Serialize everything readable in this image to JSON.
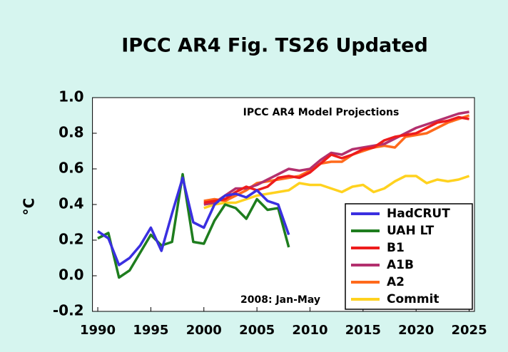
{
  "chart_data": {
    "type": "line",
    "title": "IPCC AR4 Fig. TS26 Updated",
    "y_label": "°C",
    "annotations": [
      "IPCC AR4 Model Projections",
      "2008: Jan-May"
    ],
    "xlim": [
      1989.5,
      2025.5
    ],
    "xticks": [
      1990,
      1995,
      2000,
      2005,
      2010,
      2015,
      2020,
      2025
    ],
    "ylim": [
      -0.2,
      1.0
    ],
    "yticks": [
      {
        "value": 1,
        "label": "1.0"
      },
      0.8,
      0.6,
      0.4,
      0.2,
      {
        "value": 0,
        "label": "0.0"
      },
      -0.2
    ],
    "grid": false,
    "legend": "lower right",
    "series": [
      {
        "name": "HadCRUT",
        "color": "#3a2fe0",
        "x": [
          1990,
          1991,
          1992,
          1993,
          1994,
          1995,
          1996,
          1997,
          1998,
          1999,
          2000,
          2001,
          2002,
          2003,
          2004,
          2005,
          2006,
          2007,
          2008
        ],
        "values": [
          0.25,
          0.21,
          0.06,
          0.1,
          0.17,
          0.27,
          0.14,
          0.35,
          0.55,
          0.3,
          0.27,
          0.4,
          0.45,
          0.46,
          0.44,
          0.48,
          0.42,
          0.4,
          0.23
        ]
      },
      {
        "name": "UAH LT",
        "color": "#1e7d1e",
        "x": [
          1990,
          1991,
          1992,
          1993,
          1994,
          1995,
          1996,
          1997,
          1998,
          1999,
          2000,
          2001,
          2002,
          2003,
          2004,
          2005,
          2006,
          2007,
          2008
        ],
        "values": [
          0.21,
          0.24,
          -0.01,
          0.03,
          0.13,
          0.23,
          0.17,
          0.19,
          0.57,
          0.19,
          0.18,
          0.31,
          0.4,
          0.38,
          0.32,
          0.43,
          0.37,
          0.38,
          0.16
        ]
      },
      {
        "name": "B1",
        "color": "#ee1c1c",
        "x": [
          2000,
          2001,
          2002,
          2003,
          2004,
          2005,
          2006,
          2007,
          2008,
          2009,
          2010,
          2011,
          2012,
          2013,
          2014,
          2015,
          2016,
          2017,
          2018,
          2019,
          2020,
          2021,
          2022,
          2023,
          2024,
          2025
        ],
        "values": [
          0.41,
          0.42,
          0.43,
          0.47,
          0.5,
          0.48,
          0.5,
          0.55,
          0.56,
          0.55,
          0.58,
          0.63,
          0.68,
          0.66,
          0.68,
          0.71,
          0.72,
          0.76,
          0.78,
          0.79,
          0.8,
          0.83,
          0.86,
          0.87,
          0.89,
          0.88
        ]
      },
      {
        "name": "A1B",
        "color": "#b3306e",
        "x": [
          2000,
          2001,
          2002,
          2003,
          2004,
          2005,
          2006,
          2007,
          2008,
          2009,
          2010,
          2011,
          2012,
          2013,
          2014,
          2015,
          2016,
          2017,
          2018,
          2019,
          2020,
          2021,
          2022,
          2023,
          2024,
          2025
        ],
        "values": [
          0.4,
          0.41,
          0.45,
          0.49,
          0.49,
          0.51,
          0.54,
          0.57,
          0.6,
          0.59,
          0.6,
          0.65,
          0.69,
          0.68,
          0.71,
          0.72,
          0.73,
          0.74,
          0.77,
          0.8,
          0.83,
          0.85,
          0.87,
          0.89,
          0.91,
          0.92
        ]
      },
      {
        "name": "A2",
        "color": "#ff6a1c",
        "x": [
          2000,
          2001,
          2002,
          2003,
          2004,
          2005,
          2006,
          2007,
          2008,
          2009,
          2010,
          2011,
          2012,
          2013,
          2014,
          2015,
          2016,
          2017,
          2018,
          2019,
          2020,
          2021,
          2022,
          2023,
          2024,
          2025
        ],
        "values": [
          0.42,
          0.43,
          0.42,
          0.45,
          0.48,
          0.52,
          0.53,
          0.54,
          0.55,
          0.56,
          0.59,
          0.63,
          0.64,
          0.64,
          0.68,
          0.7,
          0.72,
          0.73,
          0.72,
          0.78,
          0.79,
          0.8,
          0.83,
          0.86,
          0.88,
          0.9
        ]
      },
      {
        "name": "Commit",
        "color": "#ffd21f",
        "x": [
          2000,
          2001,
          2002,
          2003,
          2004,
          2005,
          2006,
          2007,
          2008,
          2009,
          2010,
          2011,
          2012,
          2013,
          2014,
          2015,
          2016,
          2017,
          2018,
          2019,
          2020,
          2021,
          2022,
          2023,
          2024,
          2025
        ],
        "values": [
          0.38,
          0.4,
          0.41,
          0.41,
          0.43,
          0.45,
          0.46,
          0.47,
          0.48,
          0.52,
          0.51,
          0.51,
          0.49,
          0.47,
          0.5,
          0.51,
          0.47,
          0.49,
          0.53,
          0.56,
          0.56,
          0.52,
          0.54,
          0.53,
          0.54,
          0.56
        ]
      }
    ]
  }
}
